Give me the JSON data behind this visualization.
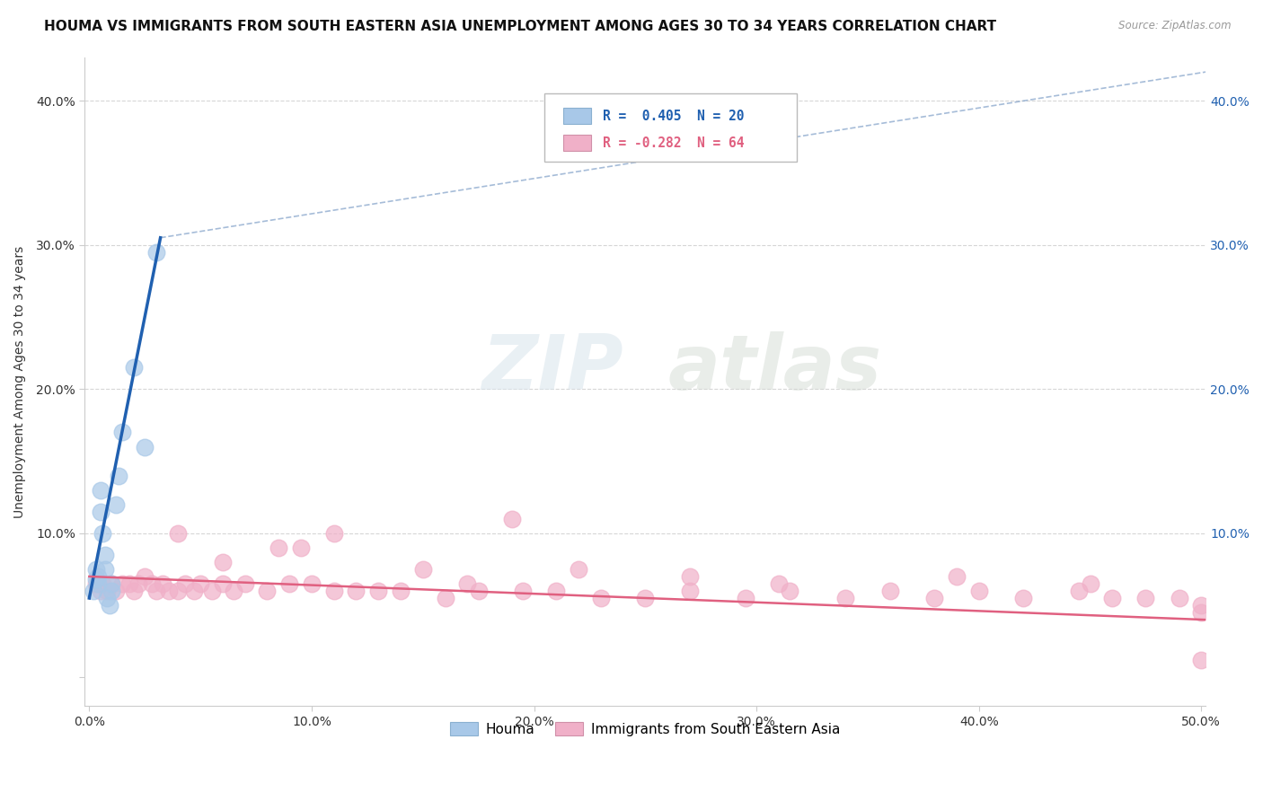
{
  "title": "HOUMA VS IMMIGRANTS FROM SOUTH EASTERN ASIA UNEMPLOYMENT AMONG AGES 30 TO 34 YEARS CORRELATION CHART",
  "source": "Source: ZipAtlas.com",
  "ylabel": "Unemployment Among Ages 30 to 34 years",
  "xlim": [
    -0.002,
    0.502
  ],
  "ylim": [
    -0.02,
    0.43
  ],
  "xticks": [
    0.0,
    0.1,
    0.2,
    0.3,
    0.4,
    0.5
  ],
  "yticks": [
    0.0,
    0.1,
    0.2,
    0.3,
    0.4
  ],
  "xtick_labels": [
    "0.0%",
    "10.0%",
    "20.0%",
    "30.0%",
    "40.0%",
    "50.0%"
  ],
  "ytick_labels": [
    "",
    "10.0%",
    "20.0%",
    "30.0%",
    "40.0%"
  ],
  "ytick_labels_right": [
    "",
    "10.0%",
    "20.0%",
    "30.0%",
    "40.0%"
  ],
  "houma_color": "#a8c8e8",
  "immigrants_color": "#f0b0c8",
  "houma_line_color": "#2060b0",
  "immigrants_line_color": "#e06080",
  "houma_x": [
    0.002,
    0.003,
    0.003,
    0.004,
    0.004,
    0.005,
    0.005,
    0.006,
    0.007,
    0.007,
    0.008,
    0.009,
    0.01,
    0.01,
    0.012,
    0.013,
    0.015,
    0.02,
    0.025,
    0.03
  ],
  "houma_y": [
    0.06,
    0.068,
    0.075,
    0.065,
    0.07,
    0.115,
    0.13,
    0.1,
    0.075,
    0.085,
    0.055,
    0.05,
    0.06,
    0.065,
    0.12,
    0.14,
    0.17,
    0.215,
    0.16,
    0.295
  ],
  "immigrants_x": [
    0.003,
    0.005,
    0.006,
    0.008,
    0.01,
    0.012,
    0.015,
    0.018,
    0.02,
    0.022,
    0.025,
    0.028,
    0.03,
    0.033,
    0.036,
    0.04,
    0.043,
    0.047,
    0.05,
    0.055,
    0.06,
    0.065,
    0.07,
    0.08,
    0.09,
    0.1,
    0.11,
    0.12,
    0.13,
    0.14,
    0.16,
    0.175,
    0.195,
    0.21,
    0.23,
    0.25,
    0.27,
    0.295,
    0.315,
    0.34,
    0.36,
    0.38,
    0.4,
    0.42,
    0.445,
    0.46,
    0.475,
    0.49,
    0.5,
    0.5,
    0.11,
    0.15,
    0.095,
    0.19,
    0.27,
    0.31,
    0.22,
    0.085,
    0.04,
    0.06,
    0.17,
    0.39,
    0.45,
    0.5
  ],
  "immigrants_y": [
    0.065,
    0.06,
    0.065,
    0.06,
    0.065,
    0.06,
    0.065,
    0.065,
    0.06,
    0.065,
    0.07,
    0.065,
    0.06,
    0.065,
    0.06,
    0.06,
    0.065,
    0.06,
    0.065,
    0.06,
    0.065,
    0.06,
    0.065,
    0.06,
    0.065,
    0.065,
    0.06,
    0.06,
    0.06,
    0.06,
    0.055,
    0.06,
    0.06,
    0.06,
    0.055,
    0.055,
    0.06,
    0.055,
    0.06,
    0.055,
    0.06,
    0.055,
    0.06,
    0.055,
    0.06,
    0.055,
    0.055,
    0.055,
    0.05,
    0.012,
    0.1,
    0.075,
    0.09,
    0.11,
    0.07,
    0.065,
    0.075,
    0.09,
    0.1,
    0.08,
    0.065,
    0.07,
    0.065,
    0.045
  ],
  "houma_trend_x": [
    0.0,
    0.032
  ],
  "houma_trend_y": [
    0.055,
    0.305
  ],
  "immigrants_trend_x": [
    0.0,
    0.502
  ],
  "immigrants_trend_y": [
    0.07,
    0.04
  ],
  "dash_line_x": [
    0.032,
    0.502
  ],
  "dash_line_y": [
    0.305,
    0.42
  ],
  "background_color": "#ffffff",
  "grid_color": "#cccccc",
  "title_fontsize": 11,
  "label_fontsize": 10,
  "tick_fontsize": 10
}
